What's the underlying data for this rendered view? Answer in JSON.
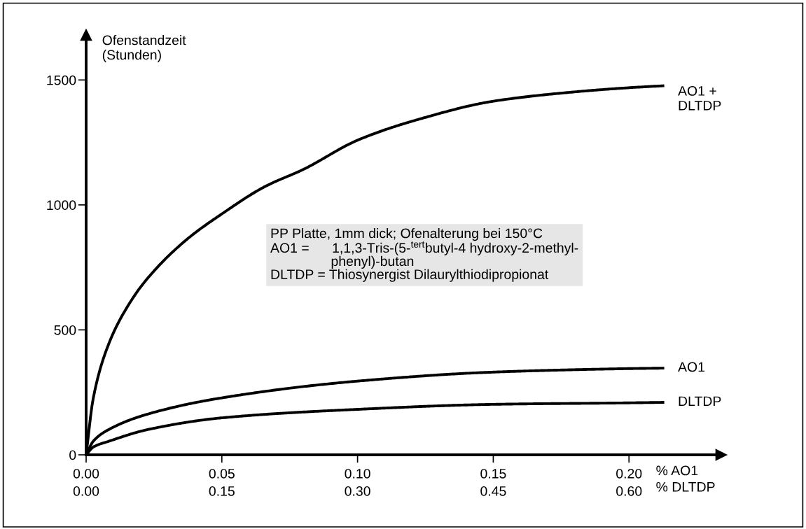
{
  "chart_data": {
    "type": "line",
    "ylabel": "Ofenstandzeit\n(Stunden)",
    "xlabel": "% AO1",
    "x2label": "% DLTDP",
    "xlim": [
      0,
      0.234
    ],
    "ylim": [
      0,
      1680
    ],
    "xticks": [
      {
        "value": 0,
        "label": "0.00"
      },
      {
        "value": 0.05,
        "label": "0.05"
      },
      {
        "value": 0.1,
        "label": "0.10"
      },
      {
        "value": 0.15,
        "label": "0.15"
      },
      {
        "value": 0.2,
        "label": "0.20"
      }
    ],
    "x2lim": [
      0,
      0.702
    ],
    "x2ticks": [
      {
        "value": 0,
        "label": "0.00"
      },
      {
        "value": 0.15,
        "label": "0.15"
      },
      {
        "value": 0.3,
        "label": "0.30"
      },
      {
        "value": 0.45,
        "label": "0.45"
      },
      {
        "value": 0.6,
        "label": "0.60"
      }
    ],
    "yticks": [
      0,
      500,
      1000,
      1500
    ],
    "grid": false,
    "legend": false,
    "marker": "none",
    "line_style": "solid",
    "series": [
      {
        "name": "AO1 +\nDLTDP",
        "color": "#000000",
        "x": [
          0,
          0.0026,
          0.0083,
          0.0155,
          0.0227,
          0.0371,
          0.05,
          0.0658,
          0.0802,
          0.1,
          0.1233,
          0.15,
          0.1807,
          0.2,
          0.213
        ],
        "values": [
          0,
          225,
          443,
          598,
          707,
          862,
          964,
          1073,
          1143,
          1259,
          1345,
          1415,
          1453,
          1469,
          1477
        ]
      },
      {
        "name": "AO1",
        "color": "#000000",
        "x": [
          0,
          0.0026,
          0.0083,
          0.0227,
          0.05,
          0.1,
          0.15,
          0.2,
          0.213
        ],
        "values": [
          0,
          54,
          101,
          163,
          228,
          295,
          331,
          345,
          347
        ]
      },
      {
        "name": "DLTDP",
        "color": "#000000",
        "x": [
          0,
          0.0026,
          0.0083,
          0.0227,
          0.05,
          0.1,
          0.15,
          0.2,
          0.213
        ],
        "values": [
          0,
          31,
          54,
          101,
          148,
          182,
          202,
          208,
          210
        ]
      }
    ],
    "annotations": [
      "PP Platte, 1mm dick; Ofenalterung bei 150°C\nAO1 =      1,1,3-Tris-(5-$^{tert}$butyl-4 hydroxy-2-methyl-\n                phenyl)-butan\nDLTDP = Thiosynergist Dilaurylthiodipropionat"
    ]
  }
}
